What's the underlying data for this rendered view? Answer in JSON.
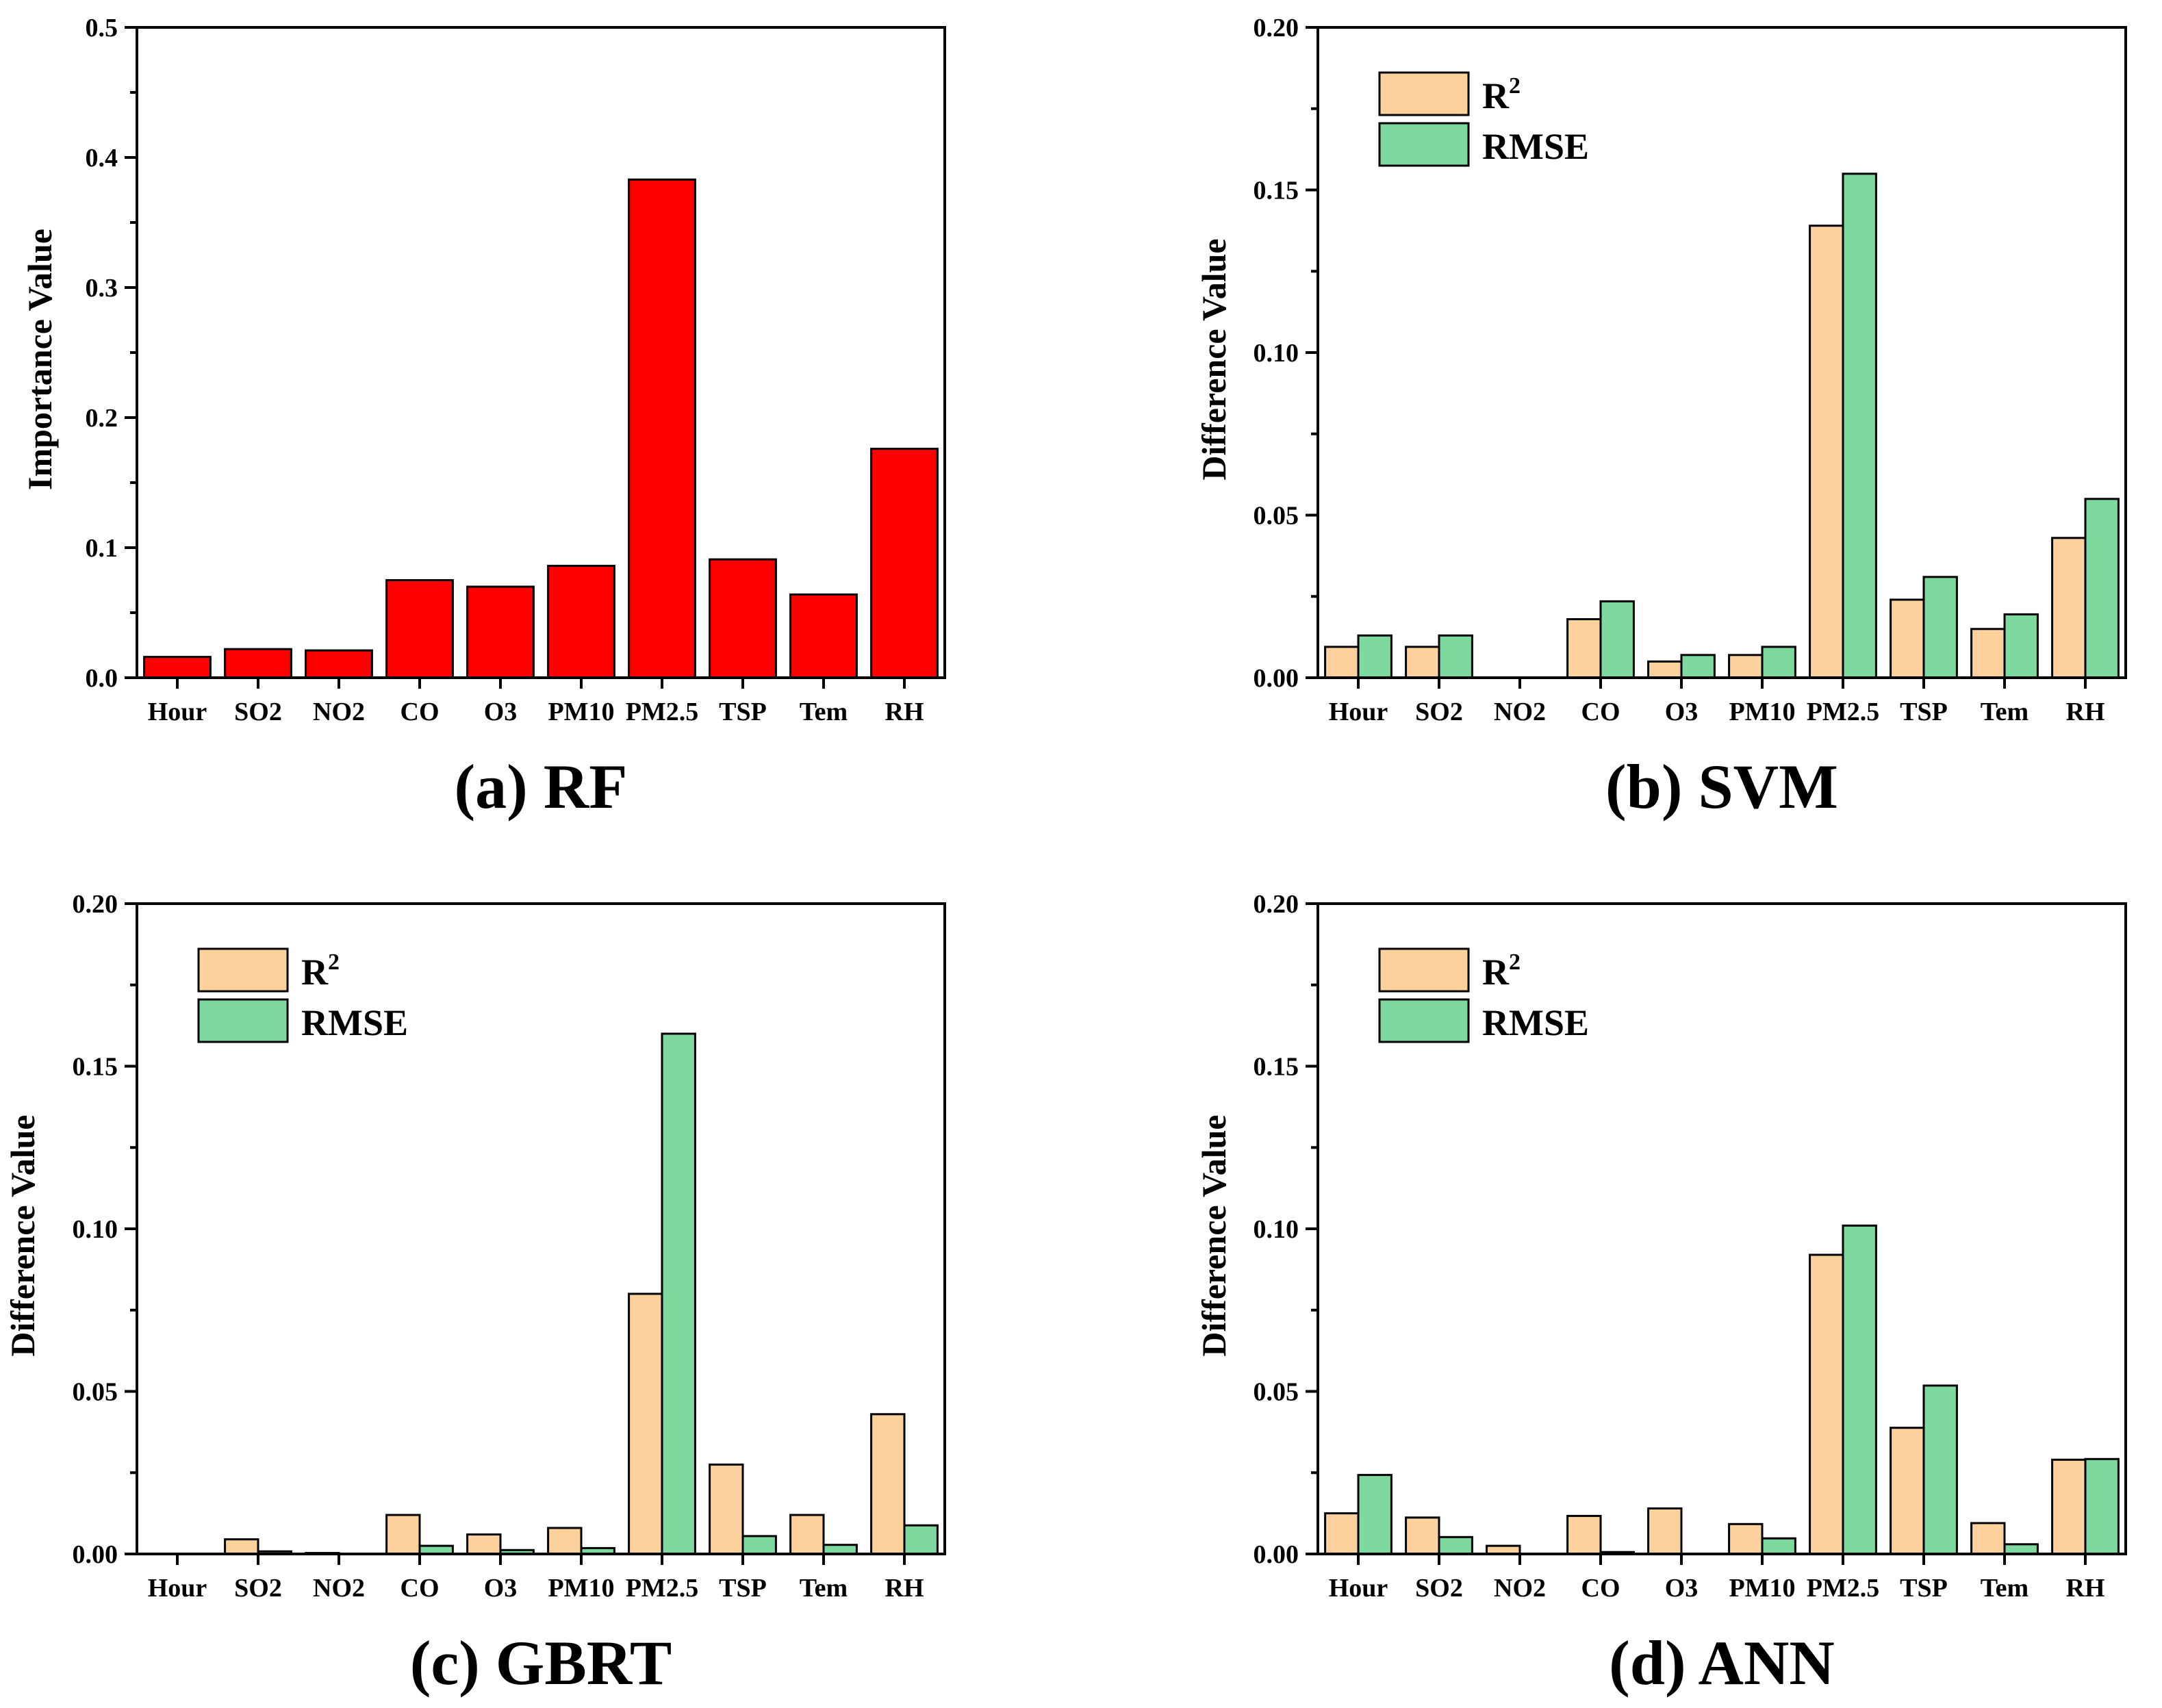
{
  "colors": {
    "rf": "#ff0000",
    "r2": "#fdd19c",
    "rmse": "#7ed99e"
  },
  "legend": {
    "r2": "R",
    "r2_sup": "2",
    "rmse": "RMSE"
  },
  "chart_data": [
    {
      "id": "rf",
      "type": "bar",
      "caption": "(a) RF",
      "ylabel": "Importance Value",
      "ylim": [
        0,
        0.5
      ],
      "yticks": [
        "0.0",
        "0.1",
        "0.2",
        "0.3",
        "0.4",
        "0.5"
      ],
      "categories": [
        "Hour",
        "SO2",
        "NO2",
        "CO",
        "O3",
        "PM10",
        "PM2.5",
        "TSP",
        "Tem",
        "RH"
      ],
      "series": [
        {
          "name": "Importance",
          "values": [
            0.016,
            0.022,
            0.021,
            0.075,
            0.07,
            0.086,
            0.383,
            0.091,
            0.064,
            0.176
          ]
        }
      ]
    },
    {
      "id": "svm",
      "type": "bar",
      "caption": "(b) SVM",
      "ylabel": "Difference Value",
      "ylim": [
        0,
        0.2
      ],
      "yticks": [
        "0.00",
        "0.05",
        "0.10",
        "0.15",
        "0.20"
      ],
      "categories": [
        "Hour",
        "SO2",
        "NO2",
        "CO",
        "O3",
        "PM10",
        "PM2.5",
        "TSP",
        "Tem",
        "RH"
      ],
      "series": [
        {
          "name": "R2",
          "values": [
            0.0095,
            0.0095,
            0.0,
            0.018,
            0.005,
            0.007,
            0.139,
            0.024,
            0.015,
            0.043
          ]
        },
        {
          "name": "RMSE",
          "values": [
            0.013,
            0.013,
            0.0,
            0.0235,
            0.007,
            0.0095,
            0.155,
            0.031,
            0.0195,
            0.055
          ]
        }
      ]
    },
    {
      "id": "gbrt",
      "type": "bar",
      "caption": "(c) GBRT",
      "ylabel": "Difference Value",
      "ylim": [
        0,
        0.2
      ],
      "yticks": [
        "0.00",
        "0.05",
        "0.10",
        "0.15",
        "0.20"
      ],
      "categories": [
        "Hour",
        "SO2",
        "NO2",
        "CO",
        "O3",
        "PM10",
        "PM2.5",
        "TSP",
        "Tem",
        "RH"
      ],
      "series": [
        {
          "name": "R2",
          "values": [
            0.0,
            0.0045,
            0.0003,
            0.012,
            0.006,
            0.008,
            0.08,
            0.0275,
            0.012,
            0.043
          ]
        },
        {
          "name": "RMSE",
          "values": [
            0.0,
            0.0008,
            0.0,
            0.0025,
            0.0012,
            0.0018,
            0.16,
            0.0055,
            0.0028,
            0.0088
          ]
        }
      ]
    },
    {
      "id": "ann",
      "type": "bar",
      "caption": "(d) ANN",
      "ylabel": "Difference Value",
      "ylim": [
        0,
        0.2
      ],
      "yticks": [
        "0.00",
        "0.05",
        "0.10",
        "0.15",
        "0.20"
      ],
      "categories": [
        "Hour",
        "SO2",
        "NO2",
        "CO",
        "O3",
        "PM10",
        "PM2.5",
        "TSP",
        "Tem",
        "RH"
      ],
      "series": [
        {
          "name": "R2",
          "values": [
            0.0125,
            0.0112,
            0.0025,
            0.0117,
            0.014,
            0.0092,
            0.092,
            0.0388,
            0.0095,
            0.029
          ]
        },
        {
          "name": "RMSE",
          "values": [
            0.0243,
            0.0052,
            0.0,
            0.0006,
            0.0,
            0.0048,
            0.101,
            0.0518,
            0.003,
            0.0292
          ]
        }
      ]
    }
  ]
}
